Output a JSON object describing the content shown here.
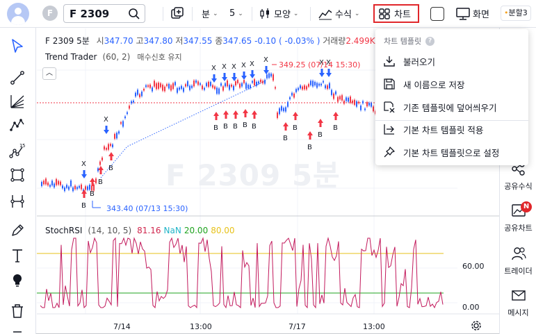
{
  "header": {
    "symbol_circle": "F",
    "symbol": "F 2309",
    "interval_label": "분",
    "interval_value": "5",
    "style_label": "모양",
    "indicators_label": "수식",
    "chart_label": "차트",
    "screen_label": "화면",
    "split_label": "분할3"
  },
  "legend": {
    "symbol": "F 2309 5분",
    "open_label": "시",
    "open": "347.70",
    "high_label": "고",
    "high": "347.80",
    "low_label": "저",
    "low": "347.55",
    "close_label": "종",
    "close": "347.65",
    "change": "-0.10 ( -0.03% )",
    "volume_label": "거래량",
    "volume": "2.499K"
  },
  "indicator": {
    "name": "Trend Trader",
    "params": "(60, 2)",
    "signal": "매수신호 유지"
  },
  "price_marks": {
    "high_label": "349.25 (07/14 15:30)",
    "low_label": "343.40 (07/13 15:30)"
  },
  "watermark": "F 2309 5분",
  "stoch": {
    "name": "StochRSI",
    "params": "(14, 10, 5)",
    "v1": "81.16",
    "v2": "NaN",
    "v3": "20.00",
    "v4": "80.00",
    "axis_60": "60.00",
    "axis_0": "0.00"
  },
  "time_axis": [
    "7/14",
    "13:00",
    "7/17",
    "13:00"
  ],
  "dropdown": {
    "header": "차트 템플릿",
    "items": [
      {
        "label": "불러오기",
        "icon": "download-icon"
      },
      {
        "label": "새 이름으로 저장",
        "icon": "save-icon"
      },
      {
        "label": "기존 템플릿에 덮어씌우기",
        "icon": "overwrite-icon"
      },
      {
        "label": "기본 차트 템플릿 적용",
        "icon": "apply-icon"
      },
      {
        "label": "기본 차트 템플릿으로 설정",
        "icon": "pin-icon"
      }
    ]
  },
  "right_panel": {
    "items": [
      {
        "label": "공유수식",
        "icon": "share-icon"
      },
      {
        "label": "공유차트",
        "icon": "shared-chart-icon",
        "badge": "N"
      },
      {
        "label": "트레이더",
        "icon": "traders-icon"
      },
      {
        "label": "메시지",
        "icon": "mail-icon"
      }
    ]
  },
  "signal_marks": {
    "buy": "B",
    "sell": "X"
  },
  "colors": {
    "bull": "#f23645",
    "bear": "#2962ff",
    "stoch_line": "#c2185b",
    "upper_band": "#e7c21a",
    "lower_band": "#1ea31e",
    "highlight_border": "#e0262a"
  }
}
